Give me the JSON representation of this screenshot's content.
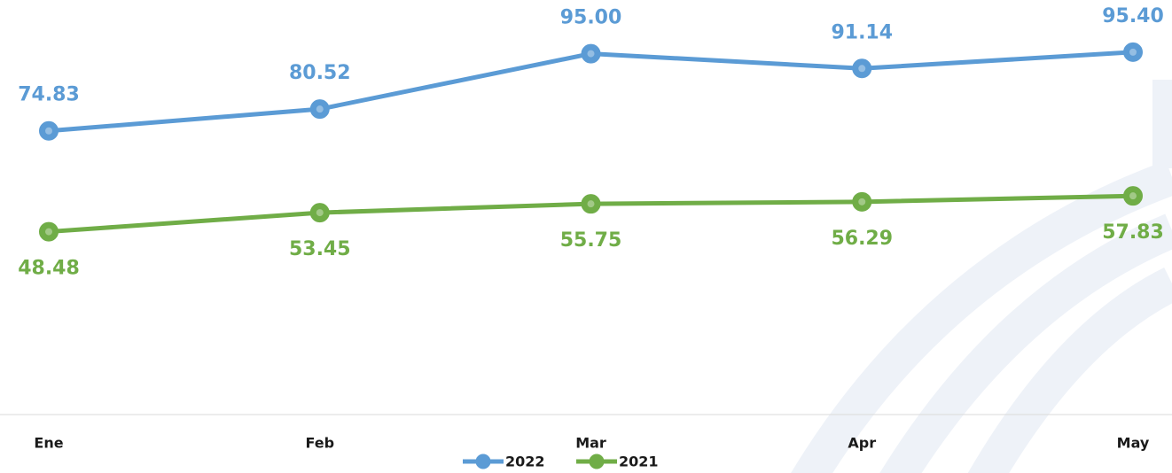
{
  "chart_data": {
    "type": "line",
    "categories": [
      "Ene",
      "Feb",
      "Mar",
      "Apr",
      "May"
    ],
    "series": [
      {
        "name": "2022",
        "color": "#5b9bd5",
        "values": [
          74.83,
          80.52,
          95.0,
          91.14,
          95.4
        ],
        "value_labels": [
          "74.83",
          "80.52",
          "95.00",
          "91.14",
          "95.40"
        ]
      },
      {
        "name": "2021",
        "color": "#70ad47",
        "values": [
          48.48,
          53.45,
          55.75,
          56.29,
          57.83
        ],
        "value_labels": [
          "48.48",
          "53.45",
          "55.75",
          "56.29",
          "57.83"
        ]
      }
    ],
    "ylim": [
      0,
      100
    ],
    "legend": "bottom"
  }
}
